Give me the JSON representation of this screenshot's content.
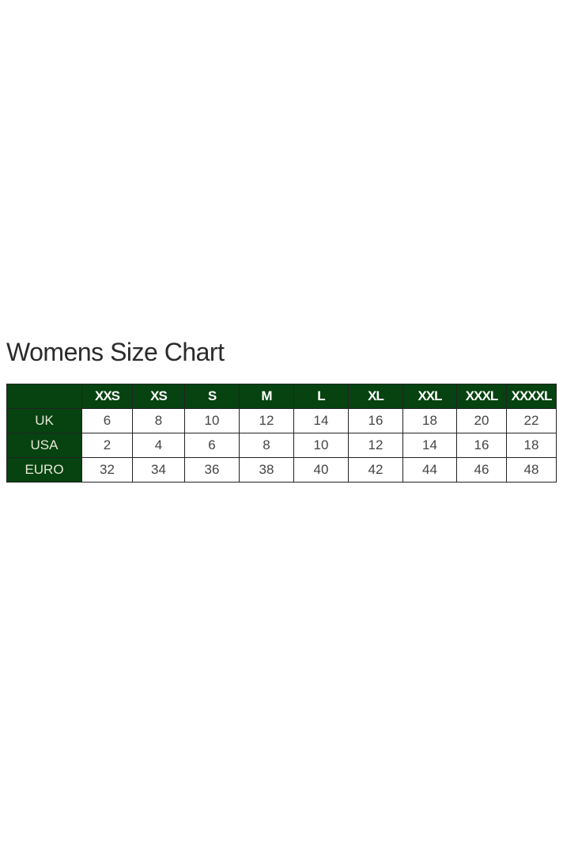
{
  "title": "Womens Size Chart",
  "colors": {
    "header_bg": "#064310",
    "header_text": "#ffffff"
  },
  "table": {
    "corner": "",
    "columns": [
      "XXS",
      "XS",
      "S",
      "M",
      "L",
      "XL",
      "XXL",
      "XXXL",
      "XXXXL"
    ],
    "rows": [
      {
        "label": "UK",
        "values": [
          "6",
          "8",
          "10",
          "12",
          "14",
          "16",
          "18",
          "20",
          "22"
        ]
      },
      {
        "label": "USA",
        "values": [
          "2",
          "4",
          "6",
          "8",
          "10",
          "12",
          "14",
          "16",
          "18"
        ]
      },
      {
        "label": "EURO",
        "values": [
          "32",
          "34",
          "36",
          "38",
          "40",
          "42",
          "44",
          "46",
          "48"
        ]
      }
    ]
  }
}
